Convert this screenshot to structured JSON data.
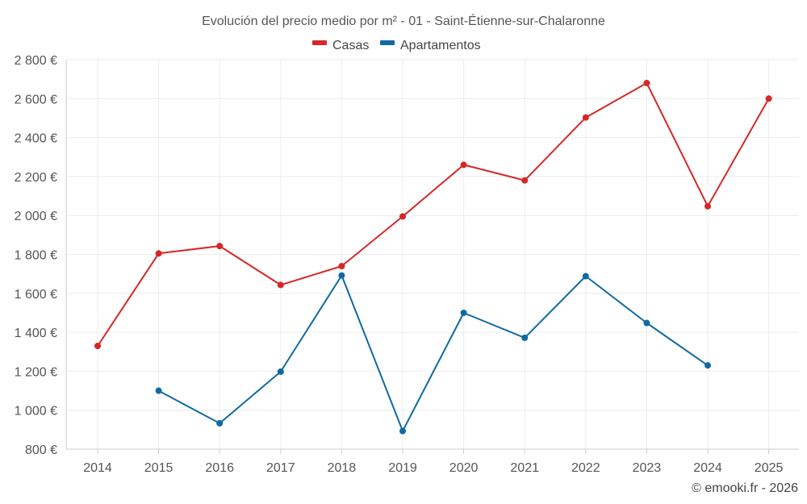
{
  "chart_data": {
    "type": "line",
    "title": "Evolución del precio medio por m² - 01 - Saint-Étienne-sur-Chalaronne",
    "categories": [
      "2014",
      "2015",
      "2016",
      "2017",
      "2018",
      "2019",
      "2020",
      "2021",
      "2022",
      "2023",
      "2024",
      "2025"
    ],
    "ylim": [
      800,
      2800
    ],
    "yticks": [
      800,
      1000,
      1200,
      1400,
      1600,
      1800,
      2000,
      2200,
      2400,
      2600,
      2800
    ],
    "ytick_labels": [
      "800 €",
      "1 000 €",
      "1 200 €",
      "1 400 €",
      "1 600 €",
      "1 800 €",
      "2 000 €",
      "2 200 €",
      "2 400 €",
      "2 600 €",
      "2 800 €"
    ],
    "legend_position": "top-center",
    "series": [
      {
        "name": "Casas",
        "color": "#d62728",
        "values": [
          1330,
          1805,
          1843,
          1643,
          1740,
          1995,
          2260,
          2180,
          2503,
          2680,
          2047,
          2600
        ]
      },
      {
        "name": "Apartamentos",
        "color": "#0f6aa1",
        "values": [
          null,
          1100,
          933,
          1198,
          1692,
          893,
          1500,
          1372,
          1688,
          1448,
          1230,
          null
        ]
      }
    ],
    "credit": "© emooki.fr - 2026"
  }
}
